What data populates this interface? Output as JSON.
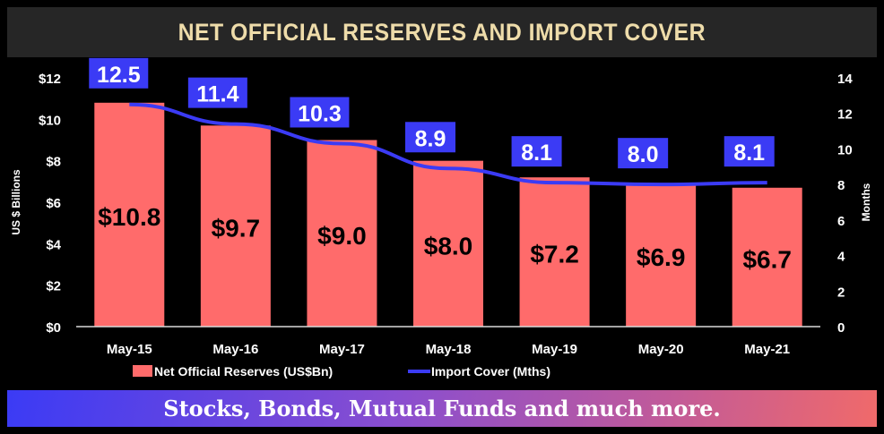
{
  "title": "NET OFFICIAL RESERVES AND IMPORT COVER",
  "banner": "Stocks, Bonds, Mutual Funds and much more.",
  "colors": {
    "bar": "#ff6b6b",
    "line": "#3b3bf5",
    "title_text": "#eedcaa",
    "title_bg": "#262626"
  },
  "chart_data": {
    "type": "bar+line",
    "categories": [
      "May-15",
      "May-16",
      "May-17",
      "May-18",
      "May-19",
      "May-20",
      "May-21"
    ],
    "series": [
      {
        "name": "Net Official Reserves (US$Bn)",
        "type": "bar",
        "axis": "left",
        "values": [
          10.8,
          9.7,
          9.0,
          8.0,
          7.2,
          6.9,
          6.7
        ],
        "labels": [
          "$10.8",
          "$9.7",
          "$9.0",
          "$8.0",
          "$7.2",
          "$6.9",
          "$6.7"
        ]
      },
      {
        "name": "Import Cover (Mths)",
        "type": "line",
        "axis": "right",
        "values": [
          12.5,
          11.4,
          10.3,
          8.9,
          8.1,
          8.0,
          8.1
        ],
        "labels": [
          "12.5",
          "11.4",
          "10.3",
          "8.9",
          "8.1",
          "8.0",
          "8.1"
        ]
      }
    ],
    "ylabel": "US $ Billions",
    "y2label": "Months",
    "ylim": [
      0,
      12
    ],
    "y2lim": [
      0,
      14
    ],
    "yticks": [
      "$0",
      "$2",
      "$4",
      "$6",
      "$8",
      "$10",
      "$12"
    ],
    "y2ticks": [
      "0",
      "2",
      "4",
      "6",
      "8",
      "10",
      "12",
      "14"
    ],
    "grid": false,
    "legend": "bottom"
  }
}
